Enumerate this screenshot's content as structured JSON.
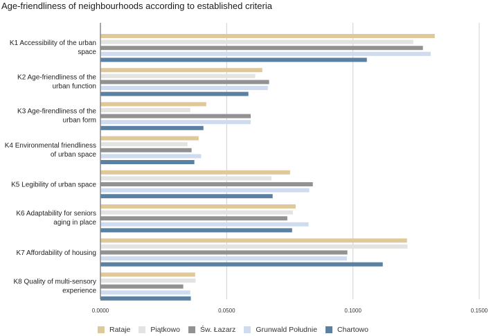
{
  "chart_data": {
    "type": "bar",
    "orientation": "horizontal",
    "title": "Age-friendliness of neighbourhoods according to established criteria",
    "xlabel": "",
    "ylabel": "",
    "xlim": [
      0,
      0.15
    ],
    "x_ticks": [
      "0.0000",
      "0.0500",
      "0.1000",
      "0.1500"
    ],
    "x_tick_values": [
      0,
      0.05,
      0.1,
      0.15
    ],
    "grid": true,
    "legend_position": "bottom",
    "categories": [
      [
        "K1 Accessibility of the urban",
        "space"
      ],
      [
        "K2 Age-friendliness of the",
        "urban function"
      ],
      [
        "K3 Age-firendliness of the",
        "urban form"
      ],
      [
        "K4 Environmental friendliness",
        "of urban space"
      ],
      [
        "K5 Legibility of urban space"
      ],
      [
        "K6 Adaptability for seniors",
        "aging in place"
      ],
      [
        "K7 Affordability of housing"
      ],
      [
        "K8 Quality of multi-sensory",
        "experience"
      ]
    ],
    "series": [
      {
        "name": "Rataje",
        "color": "#dfc99b",
        "values": [
          0.1324,
          0.0641,
          0.0419,
          0.0389,
          0.0751,
          0.0773,
          0.1214,
          0.0375
        ]
      },
      {
        "name": "Piątkowo",
        "color": "#e3e3e1",
        "values": [
          0.1239,
          0.0613,
          0.0356,
          0.0345,
          0.0677,
          0.0762,
          0.1216,
          0.0377
        ]
      },
      {
        "name": "Św. Łazarz",
        "color": "#929292",
        "values": [
          0.1277,
          0.0668,
          0.0595,
          0.0361,
          0.0841,
          0.074,
          0.0978,
          0.0328
        ]
      },
      {
        "name": "Grunwald Południe",
        "color": "#cfdcf0",
        "values": [
          0.1308,
          0.0663,
          0.0595,
          0.0399,
          0.0827,
          0.0824,
          0.0976,
          0.0356
        ]
      },
      {
        "name": "Chartowo",
        "color": "#5a80a2",
        "values": [
          0.1055,
          0.0586,
          0.0408,
          0.0372,
          0.0682,
          0.0759,
          0.1118,
          0.0358
        ]
      }
    ]
  }
}
